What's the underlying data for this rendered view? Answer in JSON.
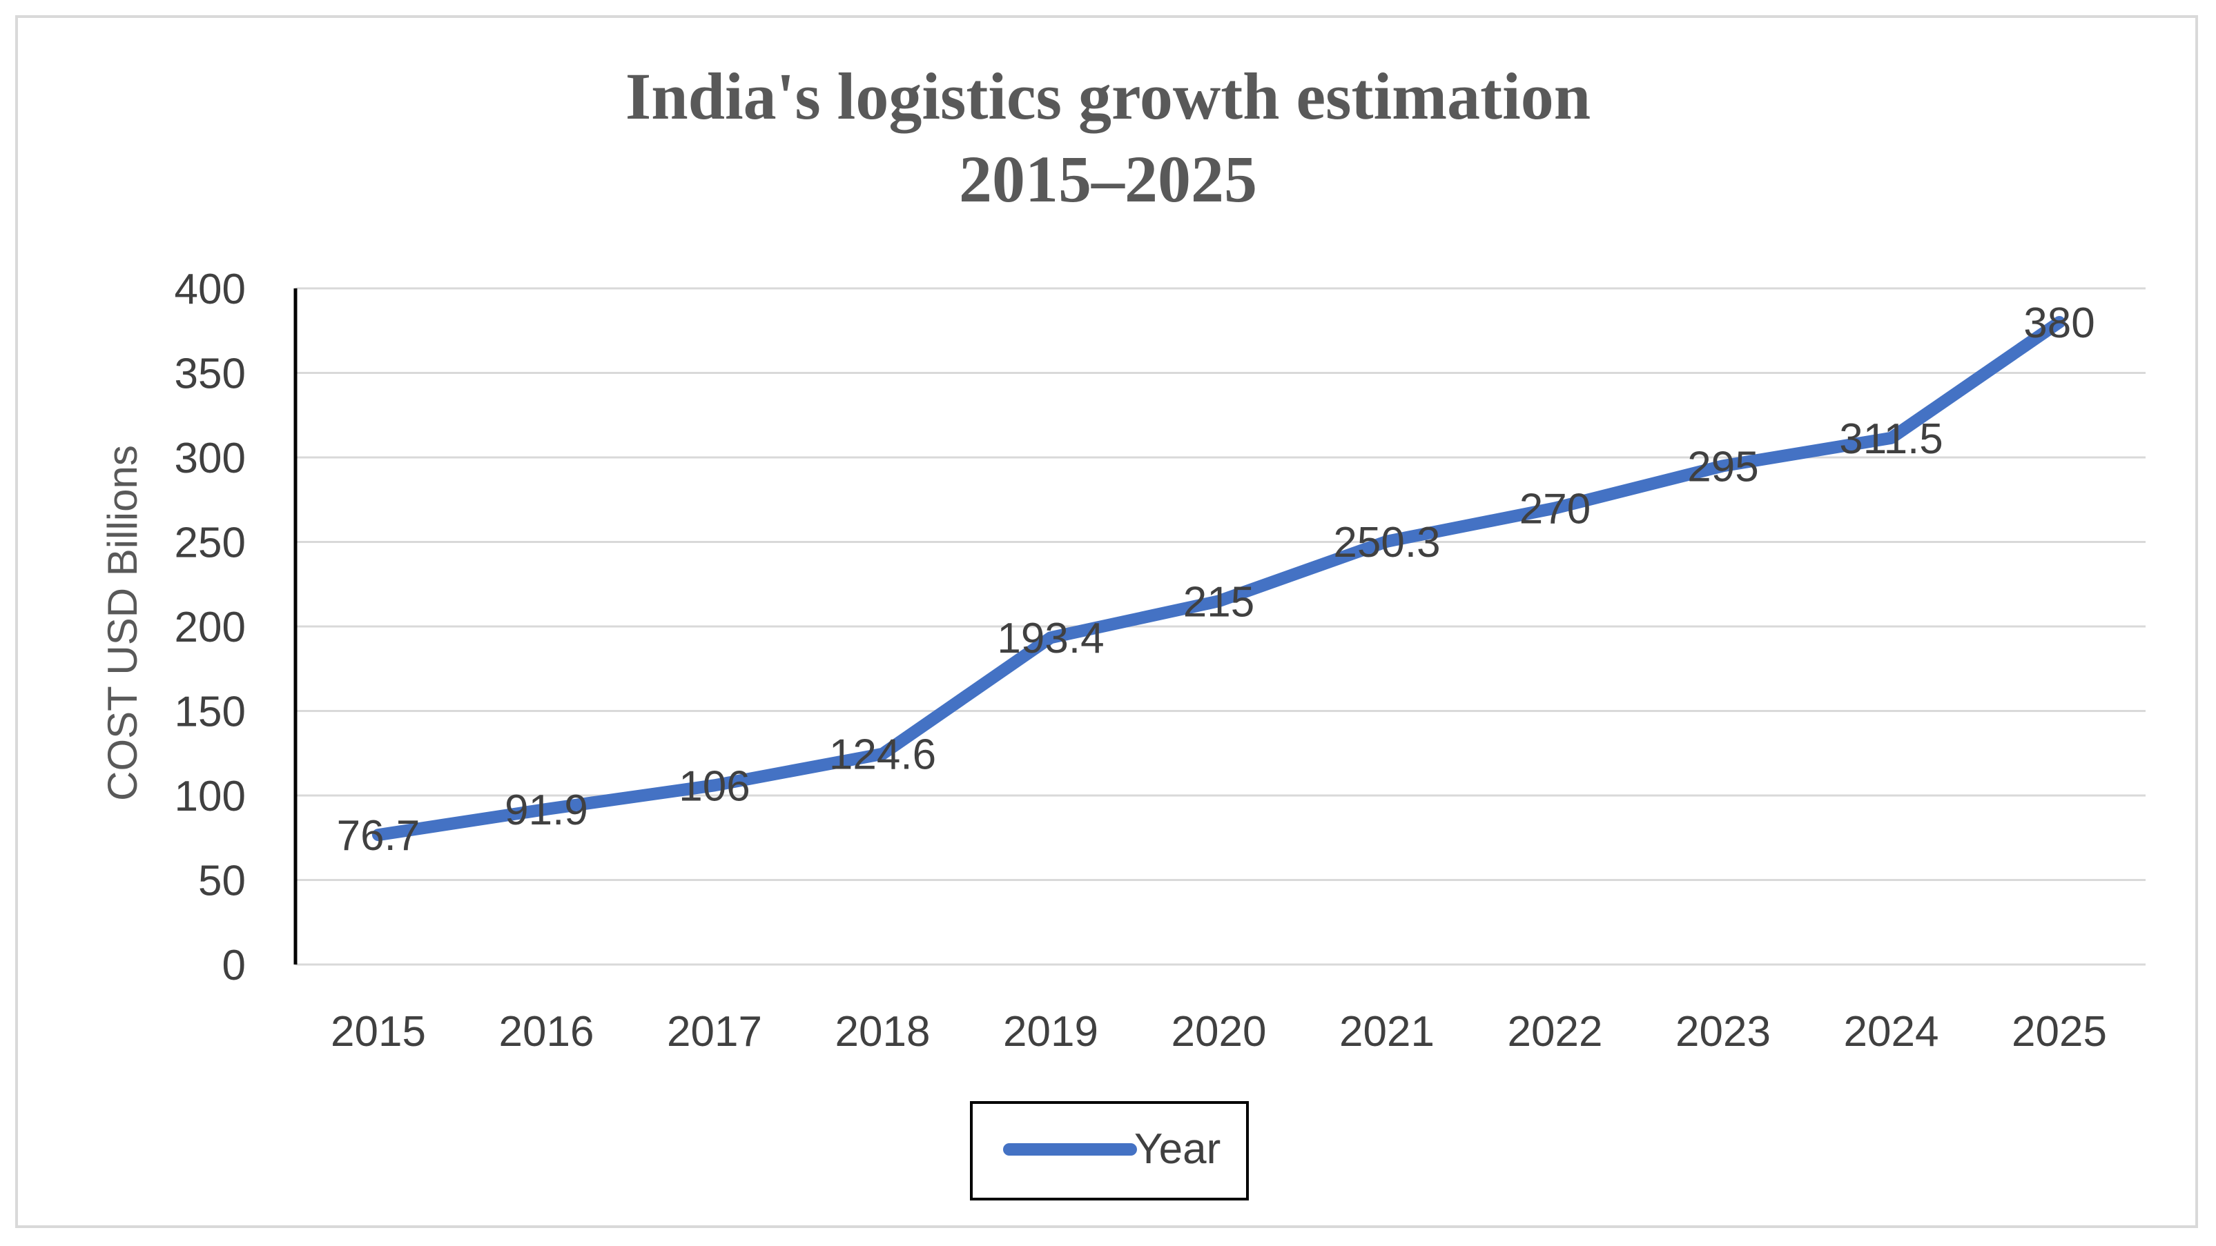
{
  "chart_data": {
    "type": "line",
    "title_line1": "India's logistics growth estimation",
    "title_line2": "2015–2025",
    "ylabel": "COST USD Billions",
    "xlabel": "",
    "categories": [
      "2015",
      "2016",
      "2017",
      "2018",
      "2019",
      "2020",
      "2021",
      "2022",
      "2023",
      "2024",
      "2025"
    ],
    "series": [
      {
        "name": "Year",
        "values": [
          76.7,
          91.9,
          106,
          124.6,
          193.4,
          215,
          250.3,
          270,
          295,
          311.5,
          380
        ],
        "labels": [
          "76.7",
          "91.9",
          "106",
          "124.6",
          "193.4",
          "215",
          "250.3",
          "270",
          "295",
          "311.5",
          "380"
        ],
        "color": "#4472c4"
      }
    ],
    "ylim": [
      0,
      400
    ],
    "yticks": [
      "0",
      "50",
      "100",
      "150",
      "200",
      "250",
      "300",
      "350",
      "400"
    ],
    "ytick_values": [
      0,
      50,
      100,
      150,
      200,
      250,
      300,
      350,
      400
    ],
    "grid": true,
    "legend_position": "bottom"
  },
  "colors": {
    "line": "#4472c4",
    "grid": "#d9d9d9",
    "axis": "#000000"
  }
}
